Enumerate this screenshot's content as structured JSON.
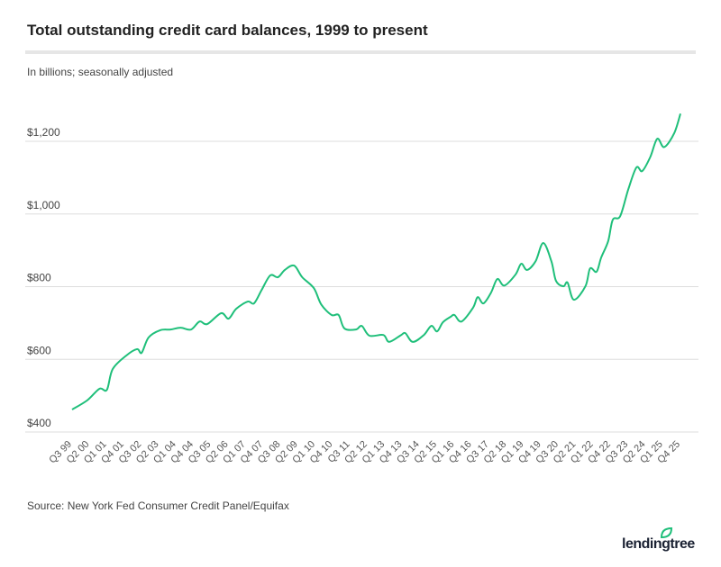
{
  "header": {
    "title": "Total outstanding credit card balances, 1999 to present",
    "subtitle": "In billions; seasonally adjusted"
  },
  "footer": {
    "source": "Source: New York Fed Consumer Credit Panel/Equifax",
    "logo": "lendingtree"
  },
  "colors": {
    "line": "#1fbf7a",
    "grid": "#dddddd",
    "text": "#444444",
    "logo_leaf": "#1fbf7a"
  },
  "chart_data": {
    "type": "line",
    "title": "Total outstanding credit card balances, 1999 to present",
    "ylabel": "In billions; seasonally adjusted",
    "xlabel": "",
    "ylim": [
      400,
      1200
    ],
    "xlim": [
      1999.5,
      2025.75
    ],
    "grid": true,
    "y_ticks": [
      {
        "value": 400,
        "label": "$400"
      },
      {
        "value": 600,
        "label": "$600"
      },
      {
        "value": 800,
        "label": "$800"
      },
      {
        "value": 1000,
        "label": "$1,000"
      },
      {
        "value": 1200,
        "label": "$1,200"
      }
    ],
    "x_tick_labels": [
      "Q3 99",
      "Q2 00",
      "Q1 01",
      "Q4 01",
      "Q3 02",
      "Q2 03",
      "Q1 04",
      "Q4 04",
      "Q3 05",
      "Q2 06",
      "Q1 07",
      "Q4 07",
      "Q3 08",
      "Q2 09",
      "Q1 10",
      "Q4 10",
      "Q3 11",
      "Q2 12",
      "Q1 13",
      "Q4 13",
      "Q3 14",
      "Q2 15",
      "Q1 16",
      "Q4 16",
      "Q3 17",
      "Q2 18",
      "Q1 19",
      "Q4 19",
      "Q3 20",
      "Q2 21",
      "Q1 22",
      "Q4 22",
      "Q3 23",
      "Q2 24",
      "Q1 25",
      "Q4 25"
    ],
    "series": [
      {
        "name": "Credit card balances",
        "x": [
          1999.5,
          2000.15,
          2000.68,
          2001.0,
          2001.25,
          2001.83,
          2002.3,
          2002.5,
          2002.8,
          2003.3,
          2003.75,
          2004.18,
          2004.63,
          2005.0,
          2005.33,
          2005.93,
          2006.25,
          2006.58,
          2007.08,
          2007.35,
          2007.68,
          2008.05,
          2008.38,
          2008.68,
          2009.08,
          2009.43,
          2009.93,
          2010.25,
          2010.7,
          2011.0,
          2011.25,
          2011.75,
          2012.0,
          2012.33,
          2012.93,
          2013.18,
          2013.7,
          2013.88,
          2014.2,
          2014.68,
          2015.0,
          2015.25,
          2015.5,
          2015.83,
          2016.0,
          2016.3,
          2016.8,
          2017.0,
          2017.25,
          2017.58,
          2017.85,
          2018.15,
          2018.63,
          2018.88,
          2019.13,
          2019.5,
          2019.83,
          2020.18,
          2020.38,
          2020.7,
          2020.88,
          2021.15,
          2021.65,
          2021.85,
          2022.13,
          2022.33,
          2022.63,
          2022.83,
          2023.15,
          2023.5,
          2023.85,
          2024.1,
          2024.45,
          2024.75,
          2025.05,
          2025.48,
          2025.75
        ],
        "values": [
          462,
          487,
          519,
          516,
          573,
          610,
          628,
          618,
          660,
          680,
          682,
          687,
          682,
          704,
          697,
          727,
          712,
          739,
          759,
          754,
          791,
          831,
          826,
          846,
          858,
          826,
          796,
          751,
          722,
          722,
          685,
          682,
          692,
          665,
          667,
          648,
          667,
          672,
          648,
          667,
          692,
          677,
          702,
          717,
          722,
          704,
          742,
          771,
          754,
          784,
          821,
          803,
          833,
          863,
          846,
          870,
          920,
          870,
          816,
          801,
          811,
          764,
          801,
          850,
          841,
          880,
          925,
          984,
          994,
          1068,
          1128,
          1118,
          1157,
          1207,
          1184,
          1222,
          1276
        ]
      }
    ]
  }
}
